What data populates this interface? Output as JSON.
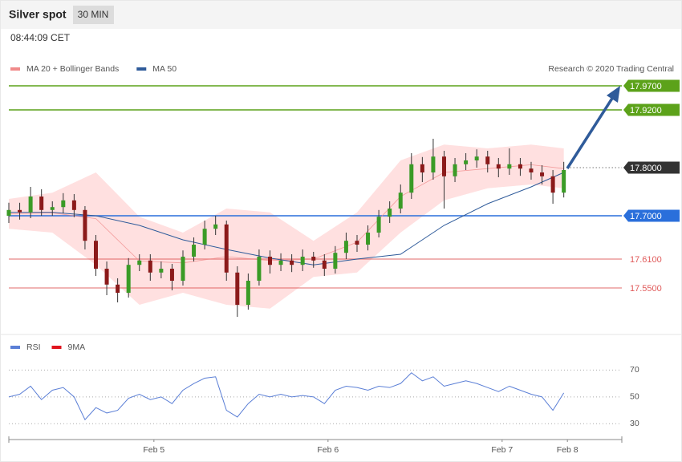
{
  "header": {
    "title": "Silver spot",
    "interval": "30 MIN",
    "time": "08:44:09 CET"
  },
  "chart_data": [
    {
      "type": "candlestick",
      "credit": "Research © 2020 Trading Central",
      "xlim": [
        0,
        169
      ],
      "ylim": [
        17.46,
        18.08
      ],
      "up_color": "#3a9b26",
      "down_color": "#8b1a1a",
      "x": [
        0,
        3,
        6,
        9,
        12,
        15,
        18,
        21,
        24,
        27,
        30,
        33,
        36,
        39,
        42,
        45,
        48,
        51,
        54,
        57,
        60,
        63,
        66,
        69,
        72,
        75,
        78,
        81,
        84,
        87,
        90,
        93,
        96,
        99,
        102,
        105,
        108,
        111,
        114,
        117,
        120,
        123,
        126,
        129,
        132,
        135,
        138,
        141,
        144,
        147,
        150,
        153
      ],
      "open": [
        17.7,
        17.712,
        17.707,
        17.74,
        17.712,
        17.718,
        17.732,
        17.712,
        17.648,
        17.59,
        17.557,
        17.54,
        17.598,
        17.607,
        17.582,
        17.59,
        17.565,
        17.615,
        17.64,
        17.673,
        17.682,
        17.582,
        17.515,
        17.565,
        17.615,
        17.598,
        17.607,
        17.598,
        17.615,
        17.607,
        17.59,
        17.623,
        17.648,
        17.64,
        17.665,
        17.698,
        17.715,
        17.748,
        17.807,
        17.79,
        17.823,
        17.782,
        17.807,
        17.815,
        17.823,
        17.807,
        17.798,
        17.807,
        17.798,
        17.79,
        17.782,
        17.748
      ],
      "high": [
        17.727,
        17.727,
        17.76,
        17.755,
        17.73,
        17.747,
        17.745,
        17.72,
        17.66,
        17.605,
        17.57,
        17.612,
        17.62,
        17.62,
        17.605,
        17.6,
        17.628,
        17.655,
        17.69,
        17.7,
        17.69,
        17.595,
        17.58,
        17.63,
        17.628,
        17.622,
        17.62,
        17.63,
        17.625,
        17.62,
        17.637,
        17.665,
        17.66,
        17.68,
        17.712,
        17.73,
        17.765,
        17.83,
        17.822,
        17.86,
        17.835,
        17.82,
        17.83,
        17.838,
        17.835,
        17.82,
        17.84,
        17.82,
        17.812,
        17.805,
        17.795,
        17.812
      ],
      "low": [
        17.685,
        17.692,
        17.695,
        17.7,
        17.7,
        17.705,
        17.697,
        17.63,
        17.575,
        17.535,
        17.52,
        17.53,
        17.585,
        17.565,
        17.57,
        17.545,
        17.555,
        17.605,
        17.63,
        17.66,
        17.565,
        17.49,
        17.505,
        17.555,
        17.58,
        17.585,
        17.583,
        17.585,
        17.592,
        17.575,
        17.58,
        17.61,
        17.625,
        17.628,
        17.655,
        17.685,
        17.705,
        17.735,
        17.77,
        17.775,
        17.715,
        17.77,
        17.795,
        17.8,
        17.79,
        17.78,
        17.785,
        17.783,
        17.775,
        17.765,
        17.725,
        17.738
      ],
      "close": [
        17.712,
        17.707,
        17.74,
        17.712,
        17.718,
        17.732,
        17.712,
        17.648,
        17.59,
        17.557,
        17.54,
        17.598,
        17.607,
        17.582,
        17.59,
        17.565,
        17.615,
        17.64,
        17.673,
        17.682,
        17.582,
        17.515,
        17.565,
        17.615,
        17.598,
        17.607,
        17.598,
        17.615,
        17.607,
        17.59,
        17.623,
        17.648,
        17.64,
        17.665,
        17.698,
        17.715,
        17.748,
        17.807,
        17.79,
        17.823,
        17.782,
        17.807,
        17.815,
        17.823,
        17.807,
        17.798,
        17.807,
        17.798,
        17.79,
        17.782,
        17.748,
        17.795
      ],
      "series": [
        {
          "name": "MA 20 + Bollinger Bands",
          "color": "#f08a8a",
          "band_color": "#ffe0e0",
          "x": [
            0,
            12,
            24,
            36,
            48,
            60,
            72,
            84,
            96,
            108,
            120,
            132,
            144,
            153
          ],
          "values": [
            17.704,
            17.706,
            17.694,
            17.606,
            17.602,
            17.615,
            17.607,
            17.61,
            17.645,
            17.74,
            17.79,
            17.798,
            17.806,
            17.798
          ],
          "upper": [
            17.735,
            17.748,
            17.79,
            17.698,
            17.665,
            17.715,
            17.707,
            17.648,
            17.707,
            17.815,
            17.848,
            17.84,
            17.848,
            17.84
          ],
          "lower": [
            17.673,
            17.665,
            17.598,
            17.515,
            17.54,
            17.515,
            17.507,
            17.573,
            17.582,
            17.665,
            17.732,
            17.757,
            17.765,
            17.757
          ]
        },
        {
          "name": "MA 50",
          "color": "#2f5b9a",
          "x": [
            0,
            12,
            24,
            36,
            48,
            60,
            72,
            84,
            96,
            108,
            120,
            132,
            144,
            153
          ],
          "values": [
            17.707,
            17.707,
            17.7,
            17.68,
            17.65,
            17.63,
            17.612,
            17.598,
            17.61,
            17.62,
            17.68,
            17.725,
            17.76,
            17.79
          ]
        }
      ],
      "levels": [
        {
          "value": 17.97,
          "label": "17.9700",
          "color": "#5ca21a",
          "style": "box",
          "line": "solid"
        },
        {
          "value": 17.92,
          "label": "17.9200",
          "color": "#5ca21a",
          "style": "box",
          "line": "solid"
        },
        {
          "value": 17.8,
          "label": "17.8000",
          "color": "#333333",
          "style": "box",
          "line": "dotted"
        },
        {
          "value": 17.7,
          "label": "17.7000",
          "color": "#2a6fdb",
          "style": "box",
          "line": "solid"
        },
        {
          "value": 17.61,
          "label": "17.6100",
          "color": "#e05a5a",
          "style": "text",
          "line": "solid"
        },
        {
          "value": 17.55,
          "label": "17.5500",
          "color": "#e05a5a",
          "style": "text",
          "line": "solid"
        }
      ]
    },
    {
      "type": "line",
      "xlim": [
        0,
        169
      ],
      "ylim": [
        20,
        90
      ],
      "yticks": [
        30,
        50,
        70
      ],
      "xticks": [
        {
          "value": 40,
          "label": "Feb 5"
        },
        {
          "value": 88,
          "label": "Feb 6"
        },
        {
          "value": 136,
          "label": "Feb 7"
        },
        {
          "value": 154,
          "label": "Feb 8"
        }
      ],
      "series": [
        {
          "name": "RSI",
          "color": "#5b7fd6",
          "x": [
            0,
            3,
            6,
            9,
            12,
            15,
            18,
            21,
            24,
            27,
            30,
            33,
            36,
            39,
            42,
            45,
            48,
            51,
            54,
            57,
            60,
            63,
            66,
            69,
            72,
            75,
            78,
            81,
            84,
            87,
            90,
            93,
            96,
            99,
            102,
            105,
            108,
            111,
            114,
            117,
            120,
            123,
            126,
            129,
            132,
            135,
            138,
            141,
            144,
            147,
            150,
            153
          ],
          "values": [
            50,
            52,
            58,
            48,
            55,
            57,
            50,
            33,
            42,
            38,
            40,
            49,
            52,
            48,
            50,
            45,
            55,
            60,
            64,
            65,
            40,
            35,
            45,
            52,
            50,
            52,
            50,
            51,
            50,
            45,
            55,
            58,
            57,
            55,
            58,
            57,
            60,
            68,
            62,
            65,
            58,
            60,
            62,
            60,
            57,
            54,
            58,
            55,
            52,
            50,
            40,
            53
          ]
        },
        {
          "name": "9MA",
          "color": "#e0141e"
        }
      ]
    }
  ]
}
